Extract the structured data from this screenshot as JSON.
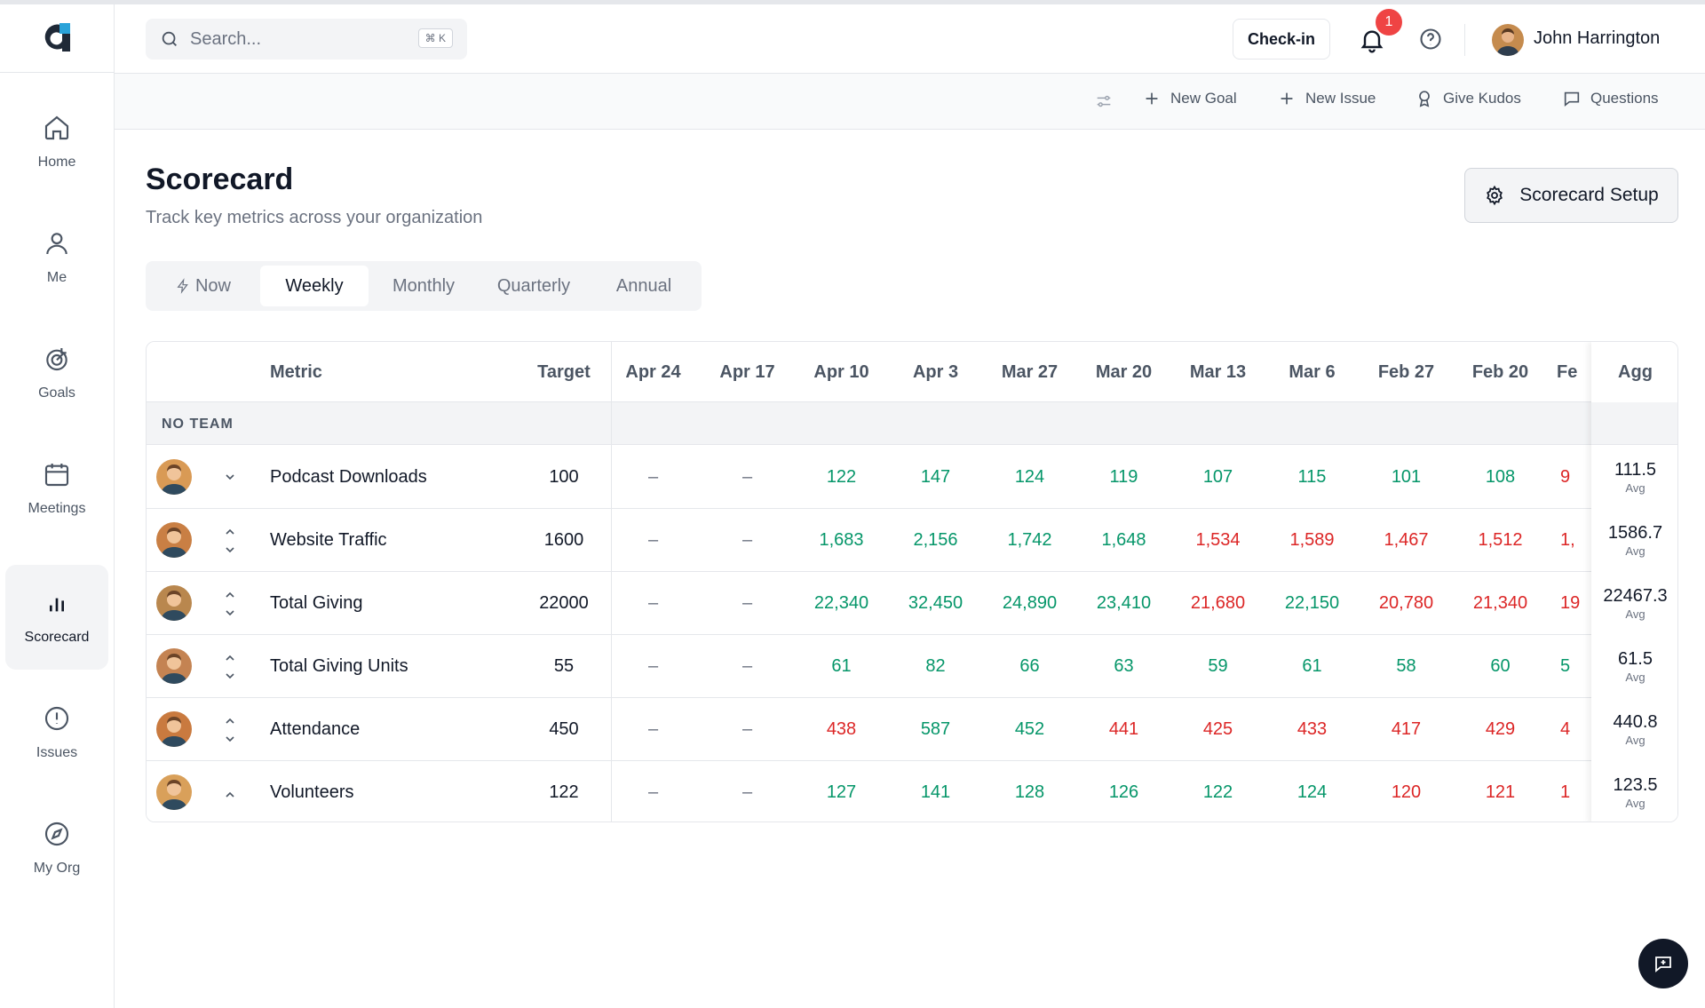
{
  "nav": {
    "items": [
      {
        "label": "Home",
        "icon": "home-icon"
      },
      {
        "label": "Me",
        "icon": "user-icon"
      },
      {
        "label": "Goals",
        "icon": "target-icon"
      },
      {
        "label": "Meetings",
        "icon": "calendar-icon"
      },
      {
        "label": "Scorecard",
        "icon": "bar-chart-icon",
        "active": true
      },
      {
        "label": "Issues",
        "icon": "alert-circle-icon"
      },
      {
        "label": "My Org",
        "icon": "compass-icon"
      }
    ]
  },
  "header": {
    "search_placeholder": "Search...",
    "search_shortcut": "⌘ K",
    "checkin_label": "Check-in",
    "notification_count": "1",
    "user_name": "John Harrington"
  },
  "toolbar": {
    "new_goal": "New Goal",
    "new_issue": "New Issue",
    "give_kudos": "Give Kudos",
    "questions": "Questions"
  },
  "page": {
    "title": "Scorecard",
    "subtitle": "Track key metrics across your organization",
    "setup_button": "Scorecard Setup"
  },
  "tabs": [
    "Now",
    "Weekly",
    "Monthly",
    "Quarterly",
    "Annual"
  ],
  "active_tab": "Weekly",
  "table": {
    "headers": {
      "metric": "Metric",
      "target": "Target",
      "agg": "Agg"
    },
    "periods": [
      "Apr 24",
      "Apr 17",
      "Apr 10",
      "Apr 3",
      "Mar 27",
      "Mar 20",
      "Mar 13",
      "Mar 6",
      "Feb 27",
      "Feb 20",
      "Fe"
    ],
    "group_label": "NO TEAM",
    "agg_label": "Avg",
    "rows": [
      {
        "name": "Podcast Downloads",
        "target": "100",
        "arrows": "down",
        "values": [
          "–",
          "–",
          "122",
          "147",
          "124",
          "119",
          "107",
          "115",
          "101",
          "108",
          "9"
        ],
        "status": [
          "d",
          "d",
          "g",
          "g",
          "g",
          "g",
          "g",
          "g",
          "g",
          "g",
          "r"
        ],
        "agg": "111.5"
      },
      {
        "name": "Website Traffic",
        "target": "1600",
        "arrows": "both",
        "values": [
          "–",
          "–",
          "1,683",
          "2,156",
          "1,742",
          "1,648",
          "1,534",
          "1,589",
          "1,467",
          "1,512",
          "1,"
        ],
        "status": [
          "d",
          "d",
          "g",
          "g",
          "g",
          "g",
          "r",
          "r",
          "r",
          "r",
          "r"
        ],
        "agg": "1586.7"
      },
      {
        "name": "Total Giving",
        "target": "22000",
        "arrows": "both",
        "values": [
          "–",
          "–",
          "22,340",
          "32,450",
          "24,890",
          "23,410",
          "21,680",
          "22,150",
          "20,780",
          "21,340",
          "19"
        ],
        "status": [
          "d",
          "d",
          "g",
          "g",
          "g",
          "g",
          "r",
          "g",
          "r",
          "r",
          "r"
        ],
        "agg": "22467.3"
      },
      {
        "name": "Total Giving Units",
        "target": "55",
        "arrows": "both",
        "values": [
          "–",
          "–",
          "61",
          "82",
          "66",
          "63",
          "59",
          "61",
          "58",
          "60",
          "5"
        ],
        "status": [
          "d",
          "d",
          "g",
          "g",
          "g",
          "g",
          "g",
          "g",
          "g",
          "g",
          "g"
        ],
        "agg": "61.5"
      },
      {
        "name": "Attendance",
        "target": "450",
        "arrows": "both",
        "values": [
          "–",
          "–",
          "438",
          "587",
          "452",
          "441",
          "425",
          "433",
          "417",
          "429",
          "4"
        ],
        "status": [
          "d",
          "d",
          "r",
          "g",
          "g",
          "r",
          "r",
          "r",
          "r",
          "r",
          "r"
        ],
        "agg": "440.8"
      },
      {
        "name": "Volunteers",
        "target": "122",
        "arrows": "up",
        "values": [
          "–",
          "–",
          "127",
          "141",
          "128",
          "126",
          "122",
          "124",
          "120",
          "121",
          "1"
        ],
        "status": [
          "d",
          "d",
          "g",
          "g",
          "g",
          "g",
          "g",
          "g",
          "r",
          "r",
          "r"
        ],
        "agg": "123.5"
      }
    ]
  },
  "colors": {
    "green": "#059669",
    "red": "#dc2626",
    "accent": "#111827"
  }
}
